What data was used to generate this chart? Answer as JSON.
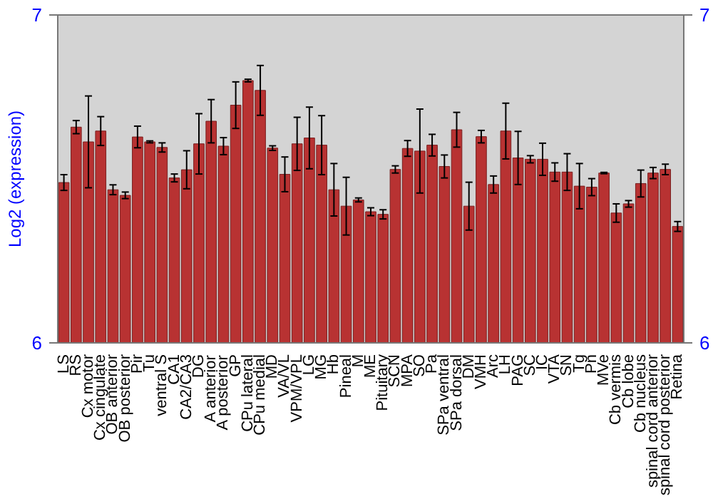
{
  "chart_data": {
    "type": "bar",
    "ylabel": "Log2 (expression)",
    "categories": [
      "LS",
      "RS",
      "Cx motor",
      "Cx cingulate",
      "OB anterior",
      "OB posterior",
      "Pir",
      "Tu",
      "ventral S",
      "CA1",
      "CA2/CA3",
      "DG",
      "A anterior",
      "A posterior",
      "GP",
      "CPu lateral",
      "CPu medial",
      "MD",
      "VA/VL",
      "VPM/VPL",
      "LG",
      "MG",
      "Hb",
      "Pineal",
      "M",
      "ME",
      "Pituitary",
      "SCN",
      "MPA",
      "SO",
      "Pa",
      "SPa ventral",
      "SPa dorsal",
      "DM",
      "VMH",
      "Arc",
      "LH",
      "PAG",
      "SC",
      "IC",
      "VTA",
      "SN",
      "Tg",
      "Pn",
      "MVe",
      "Cb vermis",
      "Cb lobe",
      "Cb nucleus",
      "spinal cord anterior",
      "spinal cord posterior",
      "Retina"
    ],
    "values": [
      6.489,
      6.658,
      6.613,
      6.646,
      6.467,
      6.45,
      6.628,
      6.613,
      6.596,
      6.503,
      6.528,
      6.607,
      6.676,
      6.6,
      6.725,
      6.8,
      6.77,
      6.594,
      6.514,
      6.607,
      6.625,
      6.603,
      6.467,
      6.417,
      6.436,
      6.4,
      6.392,
      6.529,
      6.593,
      6.585,
      6.603,
      6.538,
      6.65,
      6.417,
      6.629,
      6.483,
      6.646,
      6.564,
      6.56,
      6.56,
      6.521,
      6.521,
      6.478,
      6.475,
      6.518,
      6.396,
      6.424,
      6.486,
      6.518,
      6.529,
      6.355
    ],
    "errors": [
      0.024,
      0.02,
      0.14,
      0.044,
      0.015,
      0.01,
      0.033,
      0.003,
      0.014,
      0.012,
      0.058,
      0.092,
      0.066,
      0.026,
      0.071,
      0.004,
      0.076,
      0.007,
      0.053,
      0.081,
      0.094,
      0.09,
      0.08,
      0.088,
      0.006,
      0.012,
      0.014,
      0.011,
      0.024,
      0.128,
      0.033,
      0.035,
      0.053,
      0.073,
      0.019,
      0.026,
      0.085,
      0.081,
      0.011,
      0.049,
      0.028,
      0.056,
      0.069,
      0.026,
      0.002,
      0.028,
      0.01,
      0.041,
      0.017,
      0.016,
      0.015
    ],
    "color": "#b83232",
    "ylim": [
      6,
      7
    ],
    "yticks": [
      6,
      7
    ],
    "y2lim": [
      6,
      7
    ],
    "y2ticks": [
      6,
      7
    ],
    "grid": false
  }
}
